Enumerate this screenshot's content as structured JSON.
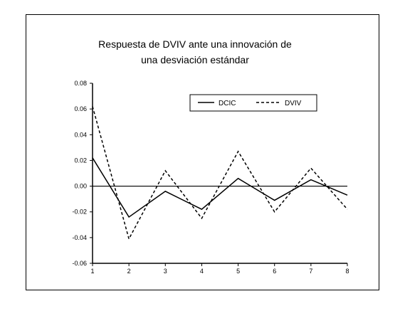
{
  "chart_data": {
    "type": "line",
    "title_lines": [
      "Respuesta de DVIV ante una innovación de",
      "una desviación estándar"
    ],
    "x": [
      1,
      2,
      3,
      4,
      5,
      6,
      7,
      8
    ],
    "x_ticks": [
      "1",
      "2",
      "3",
      "4",
      "5",
      "6",
      "7",
      "8"
    ],
    "xlim": [
      1,
      8
    ],
    "ylim": [
      -0.06,
      0.08
    ],
    "y_ticks": [
      "0.08",
      "0.06",
      "0.04",
      "0.02",
      "0.00",
      "-0.02",
      "-0.04",
      "-0.06"
    ],
    "y_tick_values": [
      0.08,
      0.06,
      0.04,
      0.02,
      0.0,
      -0.02,
      -0.04,
      -0.06
    ],
    "zero_line": true,
    "grid": false,
    "legend_position": "top-right",
    "series": [
      {
        "name": "DCIC",
        "style": "solid",
        "values": [
          0.022,
          -0.024,
          -0.004,
          -0.018,
          0.006,
          -0.011,
          0.005,
          -0.007
        ]
      },
      {
        "name": "DVIV",
        "style": "dashed",
        "values": [
          0.062,
          -0.041,
          0.012,
          -0.025,
          0.027,
          -0.02,
          0.014,
          -0.018
        ]
      }
    ],
    "colors": {
      "line": "#000000",
      "axis": "#000000",
      "background": "#ffffff"
    }
  }
}
